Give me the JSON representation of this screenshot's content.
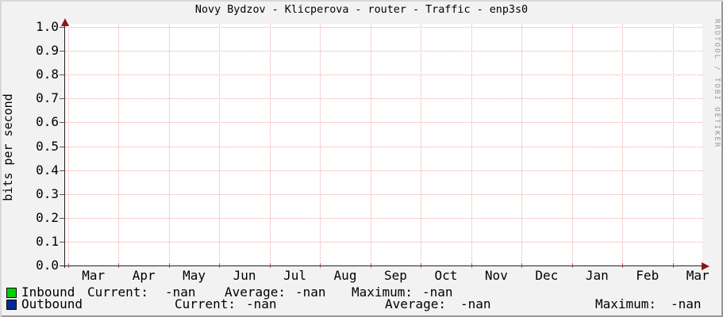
{
  "title": "Novy Bydzov - Klicperova - router - Traffic - enp3s0",
  "watermark": "RRDTOOL / TOBI OETIKER",
  "chart_data": {
    "type": "line",
    "title": "Novy Bydzov - Klicperova - router - Traffic - enp3s0",
    "xlabel": "",
    "ylabel": "bits per second",
    "ylim": [
      0.0,
      1.0
    ],
    "y_tick_step": 0.1,
    "y_tick_labels_top_to_bottom": [
      "1.0",
      "0.9",
      "0.8",
      "0.7",
      "0.6",
      "0.5",
      "0.4",
      "0.3",
      "0.2",
      "0.1",
      "0.0"
    ],
    "x_tick_labels": [
      "Mar",
      "Apr",
      "May",
      "Jun",
      "Jul",
      "Aug",
      "Sep",
      "Oct",
      "Nov",
      "Dec",
      "Jan",
      "Feb",
      "Mar"
    ],
    "grid": true,
    "grid_color": "#f1a7a7",
    "axis_arrow_color": "#8c1414",
    "no_data": true,
    "series": [
      {
        "name": "Inbound",
        "color": "#00cf00",
        "values": []
      },
      {
        "name": "Outbound",
        "color": "#002a97",
        "values": []
      }
    ]
  },
  "legend": {
    "rows": [
      {
        "name": "Inbound",
        "swatch_color": "#00cf00",
        "current_label": "Current:",
        "current": "-nan",
        "average_label": "Average:",
        "average": "-nan",
        "maximum_label": "Maximum:",
        "maximum": "-nan"
      },
      {
        "name": "Outbound",
        "swatch_color": "#002a97",
        "current_label": "Current:",
        "current": "-nan",
        "average_label": "Average:",
        "average": "-nan",
        "maximum_label": "Maximum:",
        "maximum": "-nan"
      }
    ]
  }
}
